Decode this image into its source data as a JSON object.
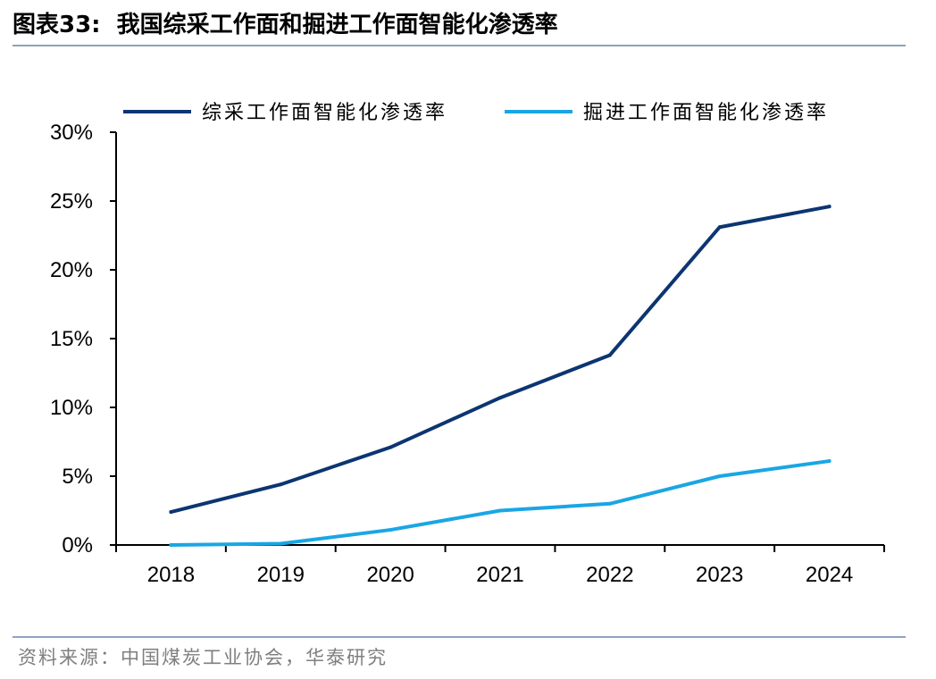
{
  "figure": {
    "label": "图表33:",
    "title": "我国综采工作面和掘进工作面智能化渗透率",
    "source": "资料来源：中国煤炭工业协会，华泰研究"
  },
  "colors": {
    "series1": "#0c3571",
    "series2": "#1aa6e4",
    "axis": "#000000",
    "rule": "#8ea3bd"
  },
  "chart_data": {
    "type": "line",
    "title": "",
    "xlabel": "",
    "ylabel": "",
    "x": [
      "2018",
      "2019",
      "2020",
      "2021",
      "2022",
      "2023",
      "2024"
    ],
    "ylim": [
      0,
      30
    ],
    "yticks": [
      "0%",
      "5%",
      "10%",
      "15%",
      "20%",
      "25%",
      "30%"
    ],
    "grid": false,
    "legend_position": "top",
    "series": [
      {
        "name": "综采工作面智能化渗透率",
        "values": [
          2.4,
          4.4,
          7.1,
          10.7,
          13.8,
          23.1,
          24.6
        ]
      },
      {
        "name": "掘进工作面智能化渗透率",
        "values": [
          0.0,
          0.1,
          1.1,
          2.5,
          3.0,
          5.0,
          6.1
        ]
      }
    ]
  }
}
